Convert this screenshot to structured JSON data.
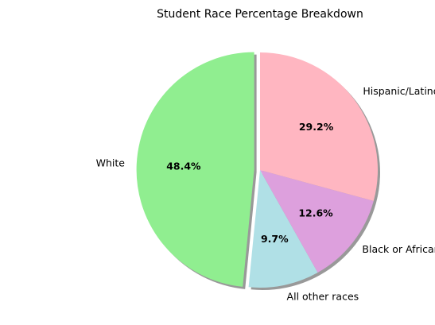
{
  "chart_data": {
    "type": "pie",
    "title": "Student Race Percentage Breakdown",
    "slices": [
      {
        "label": "White",
        "value": 48.4,
        "pct_text": "48.4%",
        "color": "#90ee90",
        "exploded": true
      },
      {
        "label": "All other races",
        "value": 9.7,
        "pct_text": "9.7%",
        "color": "#b0e0e6",
        "exploded": false
      },
      {
        "label": "Black or African American",
        "value": 12.6,
        "pct_text": "12.6%",
        "color": "#dda0dd",
        "exploded": false
      },
      {
        "label": "Hispanic/Latino of any race",
        "value": 29.2,
        "pct_text": "29.2%",
        "color": "#ffb6c1",
        "exploded": false
      }
    ],
    "start_angle_deg": 90,
    "direction": "counterclockwise",
    "shadow": true
  }
}
